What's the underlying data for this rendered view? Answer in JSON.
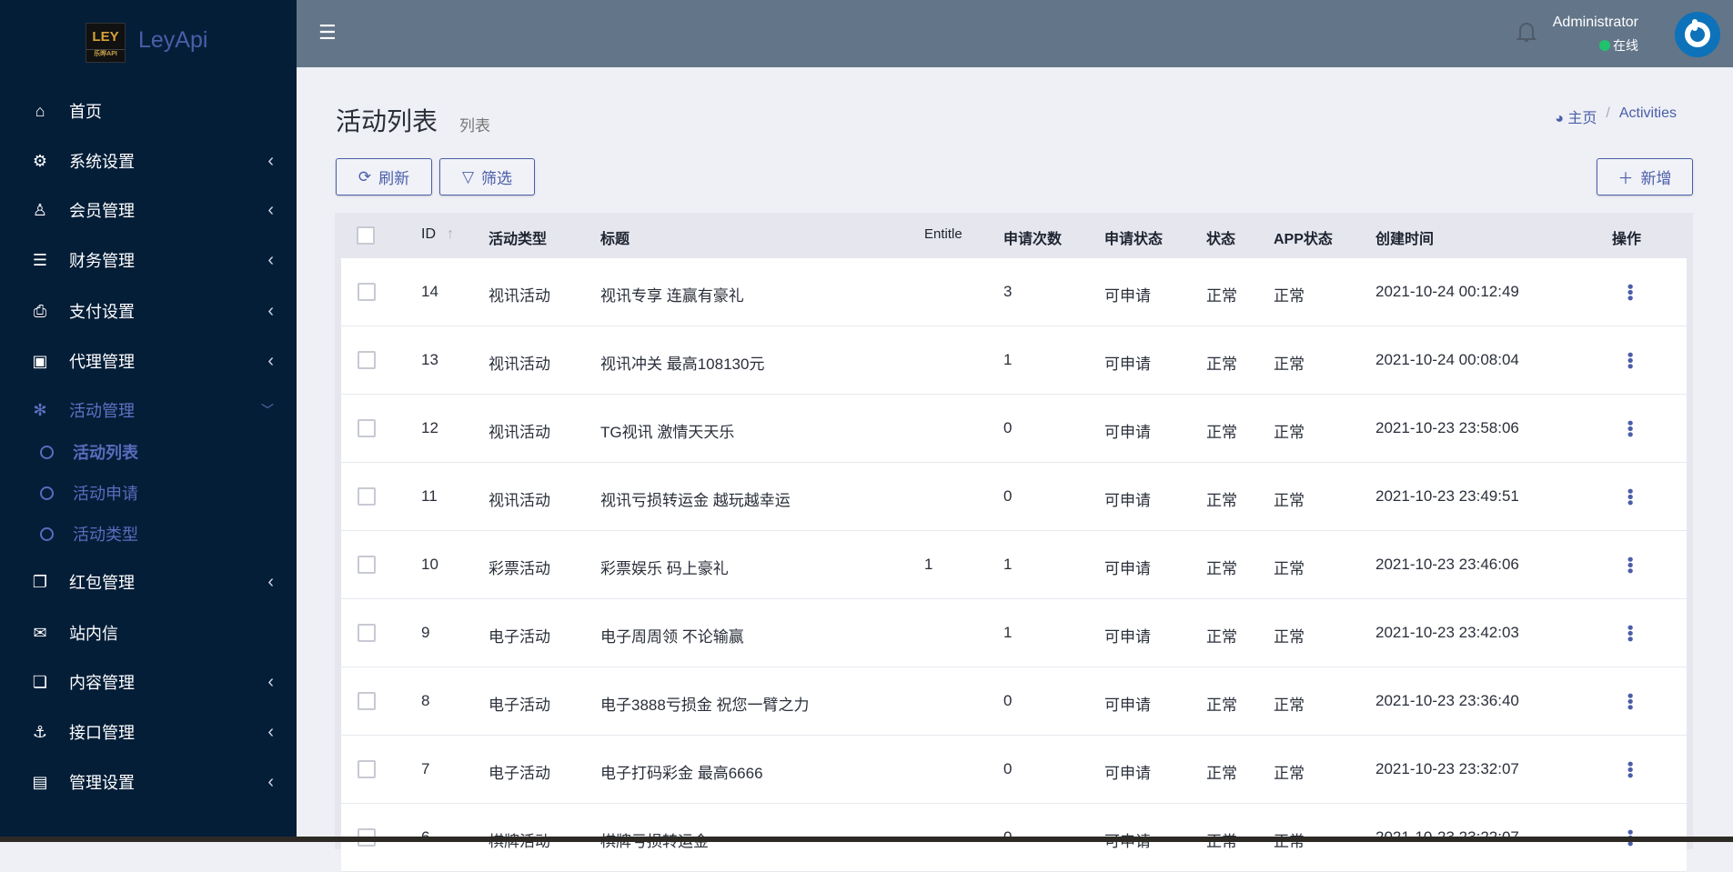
{
  "brand": {
    "name": "LeyApi",
    "logo_text": "LEY",
    "logo_sub": "乐晔API"
  },
  "sidebar": {
    "items": [
      {
        "label": "首页",
        "icon": "home-icon"
      },
      {
        "label": "系统设置",
        "icon": "gears-icon"
      },
      {
        "label": "会员管理",
        "icon": "user-icon"
      },
      {
        "label": "财务管理",
        "icon": "database-icon"
      },
      {
        "label": "支付设置",
        "icon": "bookmark-icon"
      },
      {
        "label": "代理管理",
        "icon": "contact-icon"
      },
      {
        "label": "活动管理",
        "icon": "yelp-icon"
      },
      {
        "label": "红包管理",
        "icon": "clone-icon"
      },
      {
        "label": "站内信",
        "icon": "envelope-icon"
      },
      {
        "label": "内容管理",
        "icon": "copy-icon"
      },
      {
        "label": "接口管理",
        "icon": "anchor-icon"
      },
      {
        "label": "管理设置",
        "icon": "id-card-icon"
      }
    ],
    "subitems": [
      {
        "label": "活动列表"
      },
      {
        "label": "活动申请"
      },
      {
        "label": "活动类型"
      }
    ]
  },
  "header": {
    "user": "Administrator",
    "status": "在线",
    "status_color": "#21c26e"
  },
  "page": {
    "title": "活动列表",
    "subtitle": "列表",
    "breadcrumb": [
      "主页",
      "Activities"
    ]
  },
  "toolbar": {
    "refresh": "刷新",
    "filter": "筛选",
    "add": "新增"
  },
  "table": {
    "columns": [
      "ID",
      "活动类型",
      "标题",
      "Entitle",
      "申请次数",
      "申请状态",
      "状态",
      "APP状态",
      "创建时间",
      "操作"
    ],
    "rows": [
      [
        "14",
        "视讯活动",
        "视讯专享 连赢有豪礼",
        "",
        "3",
        "可申请",
        "正常",
        "正常",
        "2021-10-24 00:12:49"
      ],
      [
        "13",
        "视讯活动",
        "视讯冲关 最高108130元",
        "",
        "1",
        "可申请",
        "正常",
        "正常",
        "2021-10-24 00:08:04"
      ],
      [
        "12",
        "视讯活动",
        "TG视讯 激情天天乐",
        "",
        "0",
        "可申请",
        "正常",
        "正常",
        "2021-10-23 23:58:06"
      ],
      [
        "11",
        "视讯活动",
        "视讯亏损转运金 越玩越幸运",
        "",
        "0",
        "可申请",
        "正常",
        "正常",
        "2021-10-23 23:49:51"
      ],
      [
        "10",
        "彩票活动",
        "彩票娱乐 码上豪礼",
        "1",
        "1",
        "可申请",
        "正常",
        "正常",
        "2021-10-23 23:46:06"
      ],
      [
        "9",
        "电子活动",
        "电子周周领 不论输赢",
        "",
        "1",
        "可申请",
        "正常",
        "正常",
        "2021-10-23 23:42:03"
      ],
      [
        "8",
        "电子活动",
        "电子3888亏损金 祝您一臂之力",
        "",
        "0",
        "可申请",
        "正常",
        "正常",
        "2021-10-23 23:36:40"
      ],
      [
        "7",
        "电子活动",
        "电子打码彩金 最高6666",
        "",
        "0",
        "可申请",
        "正常",
        "正常",
        "2021-10-23 23:32:07"
      ],
      [
        "6",
        "棋牌活动",
        "棋牌亏损转运金",
        "",
        "0",
        "可申请",
        "正常",
        "正常",
        "2021-10-23 23:22:07"
      ]
    ]
  }
}
